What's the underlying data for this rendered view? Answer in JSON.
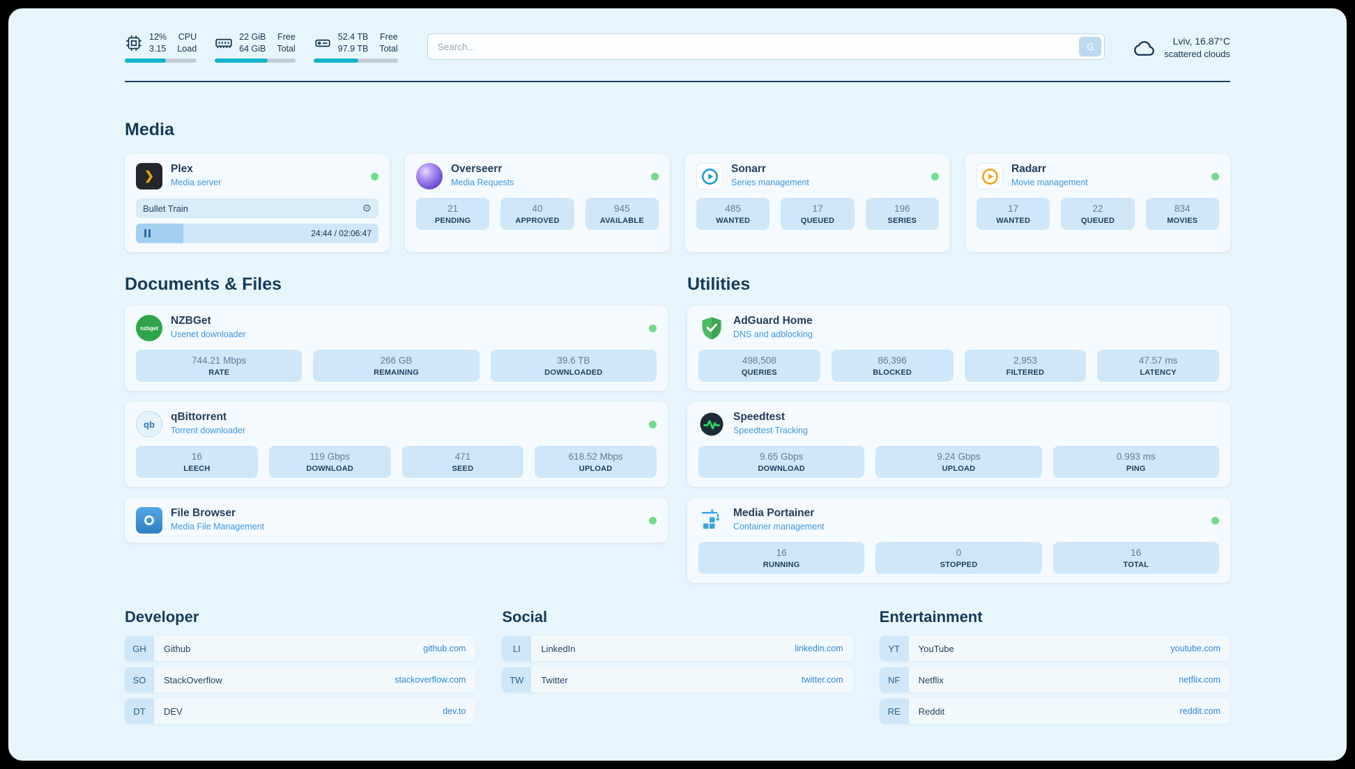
{
  "colors": {
    "background": "#e9f5fc",
    "card": "#f4fafe",
    "stat_box": "#cfe7f8",
    "heading": "#173a5a",
    "accent_teal": "#12b3c7",
    "status_green": "#6ede87",
    "link_blue": "#2f86d4"
  },
  "topbar": {
    "metrics": [
      {
        "name": "cpu",
        "value_a": "12%",
        "label_a": "CPU",
        "value_b": "3.15",
        "label_b": "Load",
        "progress": 57
      },
      {
        "name": "memory",
        "value_a": "22 GiB",
        "label_a": "Free",
        "value_b": "64 GiB",
        "label_b": "Total",
        "progress": 66
      },
      {
        "name": "storage",
        "value_a": "52.4 TB",
        "label_a": "Free",
        "value_b": "97.9 TB",
        "label_b": "Total",
        "progress": 53
      }
    ],
    "search": {
      "placeholder": "Search...",
      "shortcut": "G"
    },
    "weather": {
      "location": "Lviv, 16.87°C",
      "condition": "scattered clouds"
    }
  },
  "sections": {
    "media": {
      "title": "Media",
      "cards": [
        {
          "name": "Plex",
          "subtitle": "Media server",
          "now_playing": {
            "title": "Bullet Train",
            "time_display": "24:44 / 02:06:47",
            "progress": 19.5
          }
        },
        {
          "name": "Overseerr",
          "subtitle": "Media Requests",
          "stats": [
            {
              "value": "21",
              "label": "PENDING"
            },
            {
              "value": "40",
              "label": "APPROVED"
            },
            {
              "value": "945",
              "label": "AVAILABLE"
            }
          ]
        },
        {
          "name": "Sonarr",
          "subtitle": "Series management",
          "stats": [
            {
              "value": "485",
              "label": "WANTED"
            },
            {
              "value": "17",
              "label": "QUEUED"
            },
            {
              "value": "196",
              "label": "SERIES"
            }
          ]
        },
        {
          "name": "Radarr",
          "subtitle": "Movie management",
          "stats": [
            {
              "value": "17",
              "label": "WANTED"
            },
            {
              "value": "22",
              "label": "QUEUED"
            },
            {
              "value": "834",
              "label": "MOVIES"
            }
          ]
        }
      ]
    },
    "documents": {
      "title": "Documents & Files",
      "cards": [
        {
          "name": "NZBGet",
          "subtitle": "Usenet downloader",
          "icon_text": "nzbget",
          "stats": [
            {
              "value": "744.21 Mbps",
              "label": "RATE"
            },
            {
              "value": "266 GB",
              "label": "REMAINING"
            },
            {
              "value": "39.6 TB",
              "label": "DOWNLOADED"
            }
          ]
        },
        {
          "name": "qBittorrent",
          "subtitle": "Torrent downloader",
          "icon_text": "qb",
          "stats": [
            {
              "value": "16",
              "label": "LEECH"
            },
            {
              "value": "119 Gbps",
              "label": "DOWNLOAD"
            },
            {
              "value": "471",
              "label": "SEED"
            },
            {
              "value": "618.52 Mbps",
              "label": "UPLOAD"
            }
          ]
        },
        {
          "name": "File Browser",
          "subtitle": "Media File Management"
        }
      ]
    },
    "utilities": {
      "title": "Utilities",
      "cards": [
        {
          "name": "AdGuard Home",
          "subtitle": "DNS and adblocking",
          "stats": [
            {
              "value": "498,508",
              "label": "QUERIES"
            },
            {
              "value": "86,396",
              "label": "BLOCKED"
            },
            {
              "value": "2,953",
              "label": "FILTERED"
            },
            {
              "value": "47.57 ms",
              "label": "LATENCY"
            }
          ]
        },
        {
          "name": "Speedtest",
          "subtitle": "Speedtest Tracking",
          "stats": [
            {
              "value": "9.65 Gbps",
              "label": "DOWNLOAD"
            },
            {
              "value": "9.24 Gbps",
              "label": "UPLOAD"
            },
            {
              "value": "0.993 ms",
              "label": "PING"
            }
          ]
        },
        {
          "name": "Media Portainer",
          "subtitle": "Container management",
          "stats": [
            {
              "value": "16",
              "label": "RUNNING"
            },
            {
              "value": "0",
              "label": "STOPPED"
            },
            {
              "value": "16",
              "label": "TOTAL"
            }
          ]
        }
      ]
    }
  },
  "bookmarks": {
    "groups": [
      {
        "title": "Developer",
        "items": [
          {
            "abbr": "GH",
            "name": "Github",
            "url": "github.com"
          },
          {
            "abbr": "SO",
            "name": "StackOverflow",
            "url": "stackoverflow.com"
          },
          {
            "abbr": "DT",
            "name": "DEV",
            "url": "dev.to"
          }
        ]
      },
      {
        "title": "Social",
        "items": [
          {
            "abbr": "LI",
            "name": "LinkedIn",
            "url": "linkedin.com"
          },
          {
            "abbr": "TW",
            "name": "Twitter",
            "url": "twitter.com"
          }
        ]
      },
      {
        "title": "Entertainment",
        "items": [
          {
            "abbr": "YT",
            "name": "YouTube",
            "url": "youtube.com"
          },
          {
            "abbr": "NF",
            "name": "Netflix",
            "url": "netflix.com"
          },
          {
            "abbr": "RE",
            "name": "Reddit",
            "url": "reddit.com"
          }
        ]
      }
    ]
  }
}
